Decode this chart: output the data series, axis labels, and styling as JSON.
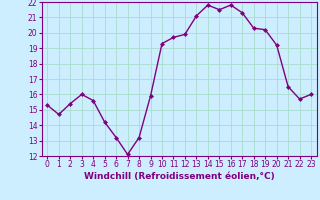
{
  "x": [
    0,
    1,
    2,
    3,
    4,
    5,
    6,
    7,
    8,
    9,
    10,
    11,
    12,
    13,
    14,
    15,
    16,
    17,
    18,
    19,
    20,
    21,
    22,
    23
  ],
  "y": [
    15.3,
    14.7,
    15.4,
    16.0,
    15.6,
    14.2,
    13.2,
    12.1,
    13.2,
    15.9,
    19.3,
    19.7,
    19.9,
    21.1,
    21.8,
    21.5,
    21.8,
    21.3,
    20.3,
    20.2,
    19.2,
    16.5,
    15.7,
    16.0
  ],
  "line_color": "#800080",
  "marker": "D",
  "markersize": 2.0,
  "linewidth": 1.0,
  "bg_color": "#cceeff",
  "grid_color": "#aaddcc",
  "xlabel": "Windchill (Refroidissement éolien,°C)",
  "xlabel_color": "#800080",
  "tick_color": "#800080",
  "ylim": [
    12,
    22
  ],
  "xlim_min": -0.5,
  "xlim_max": 23.5,
  "yticks": [
    12,
    13,
    14,
    15,
    16,
    17,
    18,
    19,
    20,
    21,
    22
  ],
  "xticks": [
    0,
    1,
    2,
    3,
    4,
    5,
    6,
    7,
    8,
    9,
    10,
    11,
    12,
    13,
    14,
    15,
    16,
    17,
    18,
    19,
    20,
    21,
    22,
    23
  ],
  "tick_fontsize": 5.5,
  "xlabel_fontsize": 6.5
}
